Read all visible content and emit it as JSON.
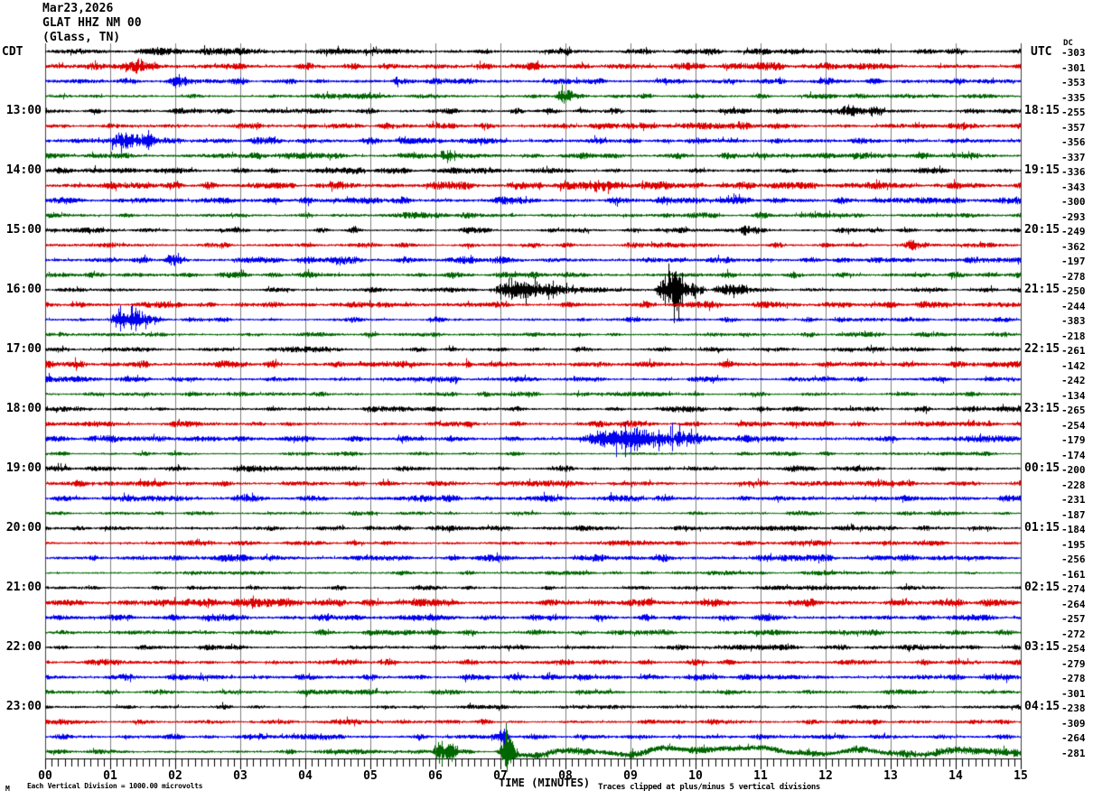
{
  "header": {
    "date": "Mar23,2026",
    "station": "GLAT HHZ NM 00",
    "location": "(Glass, TN)"
  },
  "timezones": {
    "left": "CDT",
    "right": "UTC"
  },
  "dc_column_header": "DC",
  "x_axis": {
    "title": "TIME (MINUTES)",
    "tick_labels": [
      "00",
      "01",
      "02",
      "03",
      "04",
      "05",
      "06",
      "07",
      "08",
      "09",
      "10",
      "11",
      "12",
      "13",
      "14",
      "15"
    ]
  },
  "footer": {
    "scale_note": "Each Vertical Division = 1000.00 microvolts",
    "clip_note": "Traces clipped at plus/minus 5 vertical divisions",
    "logo_mark": "M"
  },
  "chart_data": {
    "type": "line",
    "title": "GLAT HHZ NM 00 (Glass, TN) Mar23,2026",
    "xlabel": "TIME (MINUTES)",
    "x_range_minutes": [
      0,
      15
    ],
    "minutes_per_row": 15,
    "grid": true,
    "grid_color": "#808080",
    "border_color": "#404040",
    "axis_color": "#000000",
    "trace_colors": {
      "black": "#000000",
      "red": "#dd0000",
      "blue": "#0000ee",
      "green": "#006600"
    },
    "base_amp": {
      "black": 1.35,
      "red": 1.65,
      "blue": 1.5,
      "green": 1.3
    },
    "clip_divisions": 5,
    "rows": [
      {
        "color": "black",
        "left": "",
        "right": "",
        "dc": -303,
        "events": []
      },
      {
        "color": "red",
        "left": "",
        "right": "",
        "dc": -301,
        "events": [
          {
            "type": "burst",
            "start": 1.3,
            "end": 1.75,
            "amp": 2.5
          }
        ]
      },
      {
        "color": "blue",
        "left": "",
        "right": "",
        "dc": -353,
        "events": [
          {
            "type": "burst",
            "start": 1.9,
            "end": 2.4,
            "amp": 2.5
          },
          {
            "type": "burst",
            "start": 5.3,
            "end": 5.7,
            "amp": 2
          }
        ]
      },
      {
        "color": "green",
        "left": "",
        "right": "",
        "dc": -335,
        "events": [
          {
            "type": "burst",
            "start": 7.8,
            "end": 8.4,
            "amp": 2.5
          }
        ]
      },
      {
        "color": "black",
        "left": "13:00",
        "right": "18:15",
        "dc": -255,
        "events": [
          {
            "type": "burst",
            "start": 12.2,
            "end": 12.95,
            "amp": 2.8
          }
        ]
      },
      {
        "color": "red",
        "left": "",
        "right": "",
        "dc": -357,
        "events": []
      },
      {
        "color": "blue",
        "left": "",
        "right": "",
        "dc": -356,
        "events": [
          {
            "type": "burst",
            "start": 0.9,
            "end": 1.95,
            "amp": 3.2
          },
          {
            "type": "spike",
            "start": 1.45,
            "end": 1.7,
            "amp": 7
          }
        ]
      },
      {
        "color": "green",
        "left": "",
        "right": "",
        "dc": -337,
        "events": [
          {
            "type": "burst",
            "start": 5.9,
            "end": 6.7,
            "amp": 2.2
          }
        ]
      },
      {
        "color": "black",
        "left": "14:00",
        "right": "19:15",
        "dc": -336,
        "events": []
      },
      {
        "color": "red",
        "left": "",
        "right": "",
        "dc": -343,
        "events": [
          {
            "type": "burst",
            "start": 8.3,
            "end": 9.1,
            "amp": 2
          }
        ]
      },
      {
        "color": "blue",
        "left": "",
        "right": "",
        "dc": -300,
        "events": []
      },
      {
        "color": "green",
        "left": "",
        "right": "",
        "dc": -293,
        "events": []
      },
      {
        "color": "black",
        "left": "15:00",
        "right": "20:15",
        "dc": -249,
        "events": [
          {
            "type": "burst",
            "start": 10.6,
            "end": 11.2,
            "amp": 2.2
          }
        ]
      },
      {
        "color": "red",
        "left": "",
        "right": "",
        "dc": -362,
        "events": [
          {
            "type": "burst",
            "start": 13.2,
            "end": 13.6,
            "amp": 2.4
          }
        ]
      },
      {
        "color": "blue",
        "left": "",
        "right": "",
        "dc": -197,
        "events": [
          {
            "type": "burst",
            "start": 1.8,
            "end": 2.2,
            "amp": 2
          }
        ]
      },
      {
        "color": "green",
        "left": "",
        "right": "",
        "dc": -278,
        "events": []
      },
      {
        "color": "black",
        "left": "16:00",
        "right": "21:15",
        "dc": -250,
        "events": [
          {
            "type": "burst",
            "start": 6.8,
            "end": 8.4,
            "amp": 5
          },
          {
            "type": "burst",
            "start": 9.35,
            "end": 10.2,
            "amp": 9
          },
          {
            "type": "spike",
            "start": 9.55,
            "end": 9.8,
            "amp": 24
          },
          {
            "type": "burst",
            "start": 10.2,
            "end": 11.3,
            "amp": 3
          }
        ]
      },
      {
        "color": "red",
        "left": "",
        "right": "",
        "dc": -244,
        "events": []
      },
      {
        "color": "blue",
        "left": "",
        "right": "",
        "dc": -383,
        "events": [
          {
            "type": "burst",
            "start": 0.95,
            "end": 1.85,
            "amp": 5.5
          },
          {
            "type": "spike",
            "start": 1.28,
            "end": 1.5,
            "amp": 11
          }
        ]
      },
      {
        "color": "green",
        "left": "",
        "right": "",
        "dc": -218,
        "events": []
      },
      {
        "color": "black",
        "left": "17:00",
        "right": "22:15",
        "dc": -261,
        "events": []
      },
      {
        "color": "red",
        "left": "",
        "right": "",
        "dc": -142,
        "events": [
          {
            "type": "spike",
            "start": 6.4,
            "end": 6.6,
            "amp": 4
          }
        ]
      },
      {
        "color": "blue",
        "left": "",
        "right": "",
        "dc": -242,
        "events": []
      },
      {
        "color": "green",
        "left": "",
        "right": "",
        "dc": -134,
        "events": []
      },
      {
        "color": "black",
        "left": "18:00",
        "right": "23:15",
        "dc": -265,
        "events": []
      },
      {
        "color": "red",
        "left": "",
        "right": "",
        "dc": -254,
        "events": []
      },
      {
        "color": "blue",
        "left": "",
        "right": "",
        "dc": -179,
        "events": [
          {
            "type": "burst",
            "start": 8.2,
            "end": 10.5,
            "amp": 6
          }
        ]
      },
      {
        "color": "green",
        "left": "",
        "right": "",
        "dc": -174,
        "events": []
      },
      {
        "color": "black",
        "left": "19:00",
        "right": "00:15",
        "dc": -200,
        "events": []
      },
      {
        "color": "red",
        "left": "",
        "right": "",
        "dc": -228,
        "events": []
      },
      {
        "color": "blue",
        "left": "",
        "right": "",
        "dc": -231,
        "events": []
      },
      {
        "color": "green",
        "left": "",
        "right": "",
        "dc": -187,
        "events": []
      },
      {
        "color": "black",
        "left": "20:00",
        "right": "01:15",
        "dc": -184,
        "events": []
      },
      {
        "color": "red",
        "left": "",
        "right": "",
        "dc": -195,
        "events": []
      },
      {
        "color": "blue",
        "left": "",
        "right": "",
        "dc": -256,
        "events": []
      },
      {
        "color": "green",
        "left": "",
        "right": "",
        "dc": -161,
        "events": []
      },
      {
        "color": "black",
        "left": "21:00",
        "right": "02:15",
        "dc": -274,
        "events": []
      },
      {
        "color": "red",
        "left": "",
        "right": "",
        "dc": -264,
        "events": []
      },
      {
        "color": "blue",
        "left": "",
        "right": "",
        "dc": -257,
        "events": [
          {
            "type": "burst",
            "start": 7.7,
            "end": 8.1,
            "amp": 2
          }
        ]
      },
      {
        "color": "green",
        "left": "",
        "right": "",
        "dc": -272,
        "events": []
      },
      {
        "color": "black",
        "left": "22:00",
        "right": "03:15",
        "dc": -254,
        "events": []
      },
      {
        "color": "red",
        "left": "",
        "right": "",
        "dc": -279,
        "events": []
      },
      {
        "color": "blue",
        "left": "",
        "right": "",
        "dc": -278,
        "events": []
      },
      {
        "color": "green",
        "left": "",
        "right": "",
        "dc": -301,
        "events": []
      },
      {
        "color": "black",
        "left": "23:00",
        "right": "04:15",
        "dc": -238,
        "events": []
      },
      {
        "color": "red",
        "left": "",
        "right": "",
        "dc": -309,
        "events": []
      },
      {
        "color": "blue",
        "left": "",
        "right": "",
        "dc": -264,
        "events": [
          {
            "type": "spike",
            "start": 6.95,
            "end": 7.15,
            "amp": 5
          }
        ]
      },
      {
        "color": "green",
        "left": "",
        "right": "",
        "dc": -281,
        "events": [
          {
            "type": "burst",
            "start": 5.95,
            "end": 6.4,
            "amp": 6
          },
          {
            "type": "spike",
            "start": 6.9,
            "end": 7.3,
            "amp": 27
          },
          {
            "type": "wander",
            "start": 7.2,
            "end": 15,
            "amp": 4.5
          }
        ]
      }
    ]
  }
}
